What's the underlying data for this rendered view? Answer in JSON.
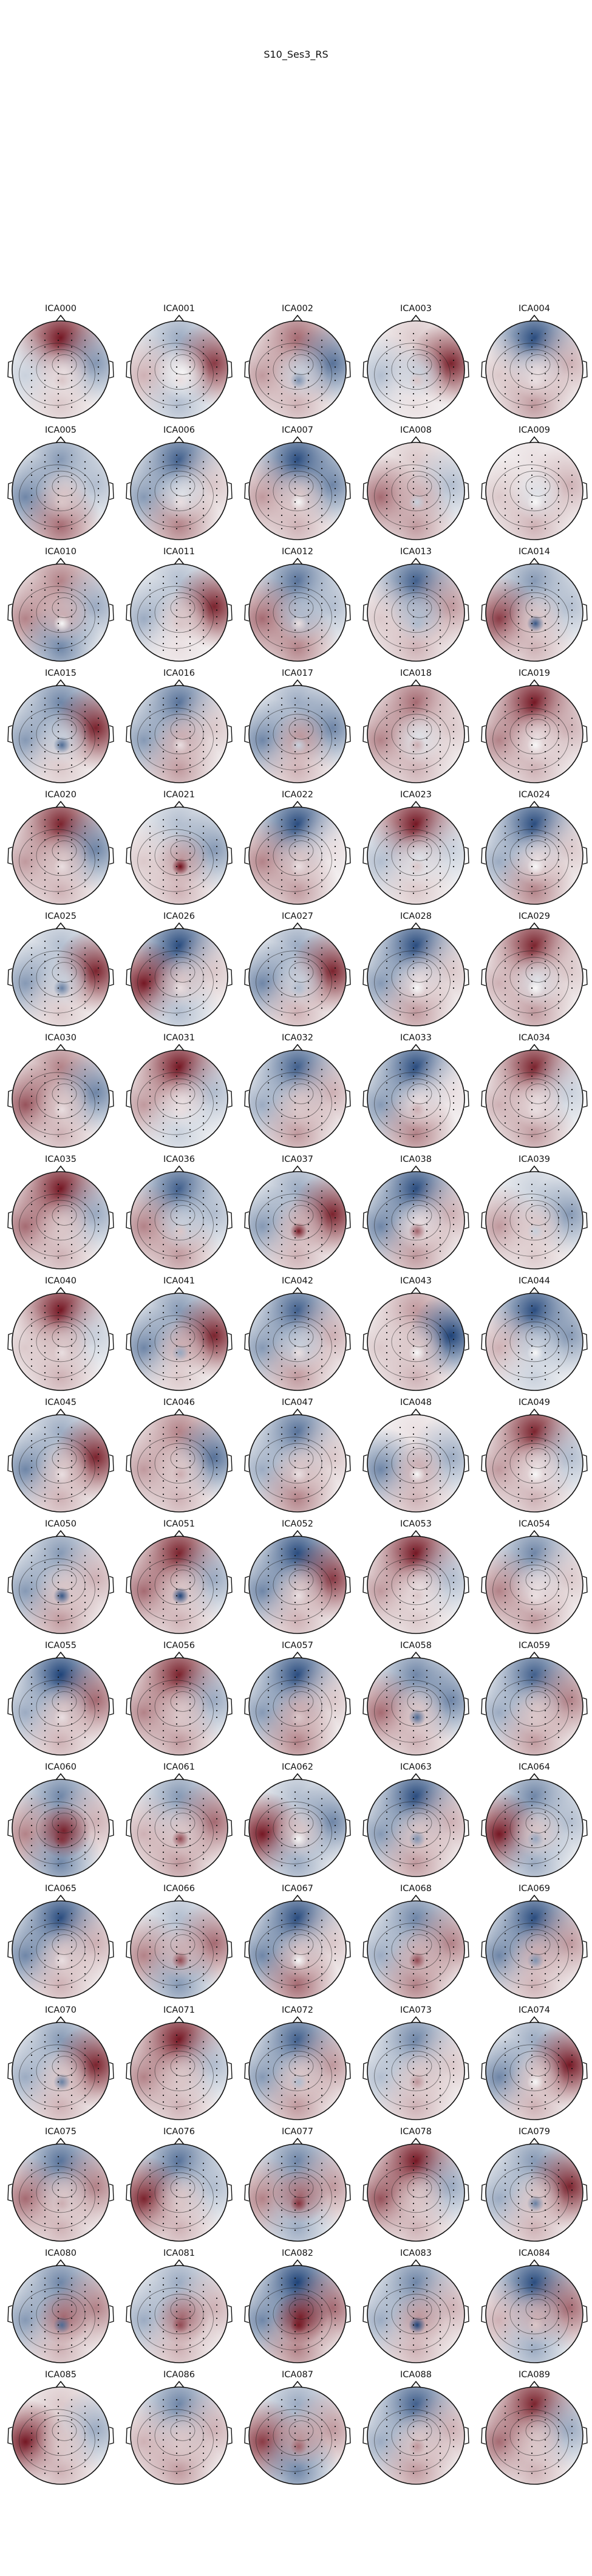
{
  "figure": {
    "title": "S10_Ses3_RS"
  },
  "colormap": {
    "negative": "#08306b",
    "neutral": "#f7f7f7",
    "positive": "#67000d"
  },
  "components": [
    {
      "label": "ICA000",
      "pattern": [
        0.95,
        -0.5,
        -0.2,
        0.2,
        0.1
      ],
      "blob": 0.2
    },
    {
      "label": "ICA001",
      "pattern": [
        -0.4,
        0.8,
        0.3,
        -0.3,
        0.0
      ],
      "blob": 0.1
    },
    {
      "label": "ICA002",
      "pattern": [
        0.6,
        -0.7,
        0.4,
        0.3,
        -0.2
      ],
      "blob": -0.5
    },
    {
      "label": "ICA003",
      "pattern": [
        0.2,
        0.9,
        -0.3,
        0.1,
        -0.2
      ],
      "blob": 0.2
    },
    {
      "label": "ICA004",
      "pattern": [
        -0.9,
        0.3,
        0.2,
        0.4,
        0.1
      ],
      "blob": 0.1
    },
    {
      "label": "ICA005",
      "pattern": [
        -0.5,
        -0.3,
        -0.6,
        0.6,
        0.2
      ],
      "blob": 0.2
    },
    {
      "label": "ICA006",
      "pattern": [
        -0.8,
        0.2,
        -0.5,
        0.5,
        -0.1
      ],
      "blob": 0.1
    },
    {
      "label": "ICA007",
      "pattern": [
        -0.9,
        -0.6,
        0.4,
        0.3,
        0.2
      ],
      "blob": 0.0
    },
    {
      "label": "ICA008",
      "pattern": [
        0.2,
        -0.3,
        0.6,
        0.4,
        0.3
      ],
      "blob": -0.2
    },
    {
      "label": "ICA009",
      "pattern": [
        0.1,
        0.3,
        0.2,
        0.3,
        -0.1
      ],
      "blob": 0.0
    },
    {
      "label": "ICA010",
      "pattern": [
        0.5,
        -0.4,
        0.5,
        -0.6,
        0.3
      ],
      "blob": 0.0
    },
    {
      "label": "ICA011",
      "pattern": [
        -0.3,
        0.9,
        -0.4,
        0.1,
        0.2
      ],
      "blob": 0.2
    },
    {
      "label": "ICA012",
      "pattern": [
        -0.7,
        -0.3,
        0.6,
        0.5,
        -0.3
      ],
      "blob": 0.1
    },
    {
      "label": "ICA013",
      "pattern": [
        -0.8,
        0.4,
        0.2,
        0.3,
        -0.3
      ],
      "blob": -0.3
    },
    {
      "label": "ICA014",
      "pattern": [
        -0.5,
        -0.3,
        0.8,
        0.3,
        0.2
      ],
      "blob": -0.8
    },
    {
      "label": "ICA015",
      "pattern": [
        -0.6,
        0.9,
        -0.5,
        0.2,
        -0.2
      ],
      "blob": -0.7
    },
    {
      "label": "ICA016",
      "pattern": [
        -0.7,
        0.2,
        -0.5,
        0.4,
        0.3
      ],
      "blob": 0.1
    },
    {
      "label": "ICA017",
      "pattern": [
        -0.4,
        -0.6,
        -0.6,
        0.3,
        0.4
      ],
      "blob": -0.2
    },
    {
      "label": "ICA018",
      "pattern": [
        0.6,
        0.2,
        0.5,
        0.3,
        -0.1
      ],
      "blob": 0.3
    },
    {
      "label": "ICA019",
      "pattern": [
        0.95,
        0.3,
        0.5,
        0.3,
        0.1
      ],
      "blob": 0.0
    },
    {
      "label": "ICA020",
      "pattern": [
        0.9,
        -0.6,
        0.4,
        0.3,
        0.2
      ],
      "blob": 0.1
    },
    {
      "label": "ICA021",
      "pattern": [
        -0.3,
        -0.5,
        0.2,
        0.3,
        0.4
      ],
      "blob": 0.95
    },
    {
      "label": "ICA022",
      "pattern": [
        -0.9,
        0.1,
        0.5,
        0.4,
        0.2
      ],
      "blob": 0.1
    },
    {
      "label": "ICA023",
      "pattern": [
        0.95,
        -0.2,
        -0.3,
        0.2,
        -0.1
      ],
      "blob": 0.2
    },
    {
      "label": "ICA024",
      "pattern": [
        -0.9,
        0.2,
        -0.4,
        0.5,
        0.1
      ],
      "blob": 0.0
    },
    {
      "label": "ICA025",
      "pattern": [
        -0.3,
        0.9,
        -0.5,
        0.2,
        -0.2
      ],
      "blob": -0.6
    },
    {
      "label": "ICA026",
      "pattern": [
        -0.9,
        0.2,
        0.95,
        -0.3,
        0.2
      ],
      "blob": 0.1
    },
    {
      "label": "ICA027",
      "pattern": [
        -0.4,
        0.9,
        -0.6,
        0.3,
        -0.2
      ],
      "blob": -0.3
    },
    {
      "label": "ICA028",
      "pattern": [
        -0.9,
        0.2,
        -0.5,
        0.4,
        0.1
      ],
      "blob": 0.0
    },
    {
      "label": "ICA029",
      "pattern": [
        0.9,
        0.2,
        0.3,
        0.4,
        -0.1
      ],
      "blob": 0.0
    },
    {
      "label": "ICA030",
      "pattern": [
        0.5,
        -0.6,
        0.7,
        0.3,
        0.2
      ],
      "blob": 0.1
    },
    {
      "label": "ICA031",
      "pattern": [
        0.95,
        -0.3,
        0.4,
        -0.2,
        0.1
      ],
      "blob": 0.1
    },
    {
      "label": "ICA032",
      "pattern": [
        -0.8,
        0.3,
        -0.4,
        0.4,
        0.2
      ],
      "blob": 0.2
    },
    {
      "label": "ICA033",
      "pattern": [
        -0.9,
        0.1,
        -0.5,
        0.5,
        0.1
      ],
      "blob": 0.3
    },
    {
      "label": "ICA034",
      "pattern": [
        0.9,
        -0.2,
        0.3,
        0.4,
        0.1
      ],
      "blob": 0.1
    },
    {
      "label": "ICA035",
      "pattern": [
        0.95,
        -0.4,
        0.6,
        0.3,
        0.2
      ],
      "blob": 0.2
    },
    {
      "label": "ICA036",
      "pattern": [
        -0.8,
        -0.3,
        0.5,
        0.4,
        -0.2
      ],
      "blob": 0.2
    },
    {
      "label": "ICA037",
      "pattern": [
        -0.4,
        0.9,
        -0.5,
        0.3,
        0.3
      ],
      "blob": 0.9
    },
    {
      "label": "ICA038",
      "pattern": [
        -0.9,
        0.3,
        -0.6,
        0.4,
        0.1
      ],
      "blob": 0.6
    },
    {
      "label": "ICA039",
      "pattern": [
        -0.2,
        -0.5,
        0.4,
        0.2,
        0.2
      ],
      "blob": -0.2
    },
    {
      "label": "ICA040",
      "pattern": [
        0.95,
        -0.2,
        0.2,
        0.3,
        0.2
      ],
      "blob": 0.1
    },
    {
      "label": "ICA041",
      "pattern": [
        -0.5,
        0.9,
        -0.6,
        0.2,
        0.3
      ],
      "blob": -0.4
    },
    {
      "label": "ICA042",
      "pattern": [
        -0.8,
        0.3,
        -0.5,
        0.4,
        -0.2
      ],
      "blob": 0.1
    },
    {
      "label": "ICA043",
      "pattern": [
        0.4,
        -0.95,
        0.2,
        0.3,
        0.2
      ],
      "blob": 0.0
    },
    {
      "label": "ICA044",
      "pattern": [
        -0.9,
        -0.5,
        0.3,
        -0.2,
        -0.2
      ],
      "blob": 0.0
    },
    {
      "label": "ICA045",
      "pattern": [
        -0.4,
        0.9,
        -0.6,
        0.3,
        0.2
      ],
      "blob": 0.1
    },
    {
      "label": "ICA046",
      "pattern": [
        0.5,
        -0.7,
        0.4,
        0.3,
        0.2
      ],
      "blob": 0.3
    },
    {
      "label": "ICA047",
      "pattern": [
        -0.7,
        0.2,
        -0.4,
        0.5,
        0.2
      ],
      "blob": 0.1
    },
    {
      "label": "ICA048",
      "pattern": [
        0.1,
        -0.4,
        -0.6,
        0.3,
        0.3
      ],
      "blob": 0.0
    },
    {
      "label": "ICA049",
      "pattern": [
        0.9,
        -0.3,
        0.4,
        0.3,
        0.1
      ],
      "blob": 0.0
    },
    {
      "label": "ICA050",
      "pattern": [
        -0.5,
        0.3,
        -0.5,
        0.4,
        0.2
      ],
      "blob": -0.8
    },
    {
      "label": "ICA051",
      "pattern": [
        0.9,
        -0.4,
        0.6,
        0.3,
        0.2
      ],
      "blob": -0.9
    },
    {
      "label": "ICA052",
      "pattern": [
        -0.9,
        0.8,
        -0.6,
        0.3,
        0.2
      ],
      "blob": 0.1
    },
    {
      "label": "ICA053",
      "pattern": [
        0.95,
        -0.3,
        0.4,
        0.2,
        0.1
      ],
      "blob": 0.2
    },
    {
      "label": "ICA054",
      "pattern": [
        -0.6,
        0.2,
        0.5,
        0.4,
        0.1
      ],
      "blob": 0.1
    },
    {
      "label": "ICA055",
      "pattern": [
        -0.95,
        0.6,
        -0.4,
        0.3,
        0.2
      ],
      "blob": 0.1
    },
    {
      "label": "ICA056",
      "pattern": [
        0.9,
        -0.4,
        0.5,
        0.4,
        0.2
      ],
      "blob": 0.2
    },
    {
      "label": "ICA057",
      "pattern": [
        -0.9,
        0.2,
        -0.5,
        0.5,
        0.3
      ],
      "blob": 0.2
    },
    {
      "label": "ICA058",
      "pattern": [
        -0.6,
        -0.6,
        0.6,
        0.3,
        0.2
      ],
      "blob": -0.7
    },
    {
      "label": "ICA059",
      "pattern": [
        -0.8,
        0.5,
        -0.4,
        0.4,
        0.2
      ],
      "blob": 0.2
    },
    {
      "label": "ICA060",
      "pattern": [
        -0.6,
        0.3,
        0.5,
        -0.6,
        0.9
      ],
      "blob": 0.8
    },
    {
      "label": "ICA061",
      "pattern": [
        -0.5,
        0.6,
        0.3,
        0.4,
        0.2
      ],
      "blob": 0.7
    },
    {
      "label": "ICA062",
      "pattern": [
        -0.3,
        -0.6,
        0.95,
        -0.4,
        0.2
      ],
      "blob": 0.0
    },
    {
      "label": "ICA063",
      "pattern": [
        -0.9,
        0.3,
        -0.5,
        0.4,
        0.2
      ],
      "blob": -0.5
    },
    {
      "label": "ICA064",
      "pattern": [
        -0.6,
        -0.3,
        0.95,
        -0.4,
        0.2
      ],
      "blob": -0.4
    },
    {
      "label": "ICA065",
      "pattern": [
        -0.9,
        0.3,
        -0.6,
        0.3,
        0.2
      ],
      "blob": 0.1
    },
    {
      "label": "ICA066",
      "pattern": [
        -0.3,
        0.6,
        0.5,
        -0.5,
        0.3
      ],
      "blob": 0.7
    },
    {
      "label": "ICA067",
      "pattern": [
        -0.9,
        0.2,
        -0.6,
        0.6,
        0.2
      ],
      "blob": 0.0
    },
    {
      "label": "ICA068",
      "pattern": [
        -0.6,
        0.5,
        -0.4,
        0.5,
        0.3
      ],
      "blob": 0.7
    },
    {
      "label": "ICA069",
      "pattern": [
        -0.9,
        0.4,
        -0.6,
        0.3,
        0.3
      ],
      "blob": -0.5
    },
    {
      "label": "ICA070",
      "pattern": [
        -0.5,
        0.9,
        -0.4,
        0.3,
        0.2
      ],
      "blob": -0.6
    },
    {
      "label": "ICA071",
      "pattern": [
        0.95,
        -0.3,
        0.5,
        0.3,
        0.2
      ],
      "blob": 0.2
    },
    {
      "label": "ICA072",
      "pattern": [
        -0.8,
        0.4,
        -0.5,
        0.4,
        0.2
      ],
      "blob": -0.3
    },
    {
      "label": "ICA073",
      "pattern": [
        -0.6,
        0.2,
        -0.3,
        0.3,
        0.2
      ],
      "blob": 0.4
    },
    {
      "label": "ICA074",
      "pattern": [
        -0.4,
        0.95,
        -0.6,
        0.3,
        0.2
      ],
      "blob": 0.0
    },
    {
      "label": "ICA075",
      "pattern": [
        -0.7,
        0.5,
        0.6,
        0.3,
        0.2
      ],
      "blob": 0.3
    },
    {
      "label": "ICA076",
      "pattern": [
        -0.7,
        -0.3,
        0.9,
        0.3,
        0.2
      ],
      "blob": 0.2
    },
    {
      "label": "ICA077",
      "pattern": [
        -0.6,
        0.4,
        0.5,
        -0.4,
        0.6
      ],
      "blob": 0.8
    },
    {
      "label": "ICA078",
      "pattern": [
        0.95,
        -0.4,
        0.7,
        0.3,
        0.2
      ],
      "blob": 0.2
    },
    {
      "label": "ICA079",
      "pattern": [
        -0.5,
        0.9,
        -0.4,
        0.3,
        0.2
      ],
      "blob": -0.6
    },
    {
      "label": "ICA080",
      "pattern": [
        -0.6,
        0.5,
        -0.5,
        0.3,
        0.6
      ],
      "blob": -0.7
    },
    {
      "label": "ICA081",
      "pattern": [
        -0.4,
        0.3,
        -0.4,
        0.3,
        0.6
      ],
      "blob": 0.7
    },
    {
      "label": "ICA082",
      "pattern": [
        -0.95,
        0.6,
        -0.6,
        0.5,
        0.9
      ],
      "blob": 0.9
    },
    {
      "label": "ICA083",
      "pattern": [
        -0.6,
        0.3,
        -0.4,
        0.3,
        0.4
      ],
      "blob": -0.9
    },
    {
      "label": "ICA084",
      "pattern": [
        -0.9,
        0.6,
        0.3,
        -0.4,
        0.3
      ],
      "blob": 0.2
    },
    {
      "label": "ICA085",
      "pattern": [
        0.2,
        -0.4,
        0.95,
        0.3,
        0.2
      ],
      "blob": 0.2
    },
    {
      "label": "ICA086",
      "pattern": [
        -0.6,
        0.3,
        0.3,
        0.4,
        0.2
      ],
      "blob": 0.2
    },
    {
      "label": "ICA087",
      "pattern": [
        -0.4,
        0.4,
        0.8,
        -0.6,
        0.4
      ],
      "blob": 0.6
    },
    {
      "label": "ICA088",
      "pattern": [
        -0.8,
        0.3,
        -0.4,
        0.4,
        0.2
      ],
      "blob": 0.4
    },
    {
      "label": "ICA089",
      "pattern": [
        0.9,
        -0.4,
        0.6,
        0.3,
        0.2
      ],
      "blob": 0.2
    }
  ]
}
